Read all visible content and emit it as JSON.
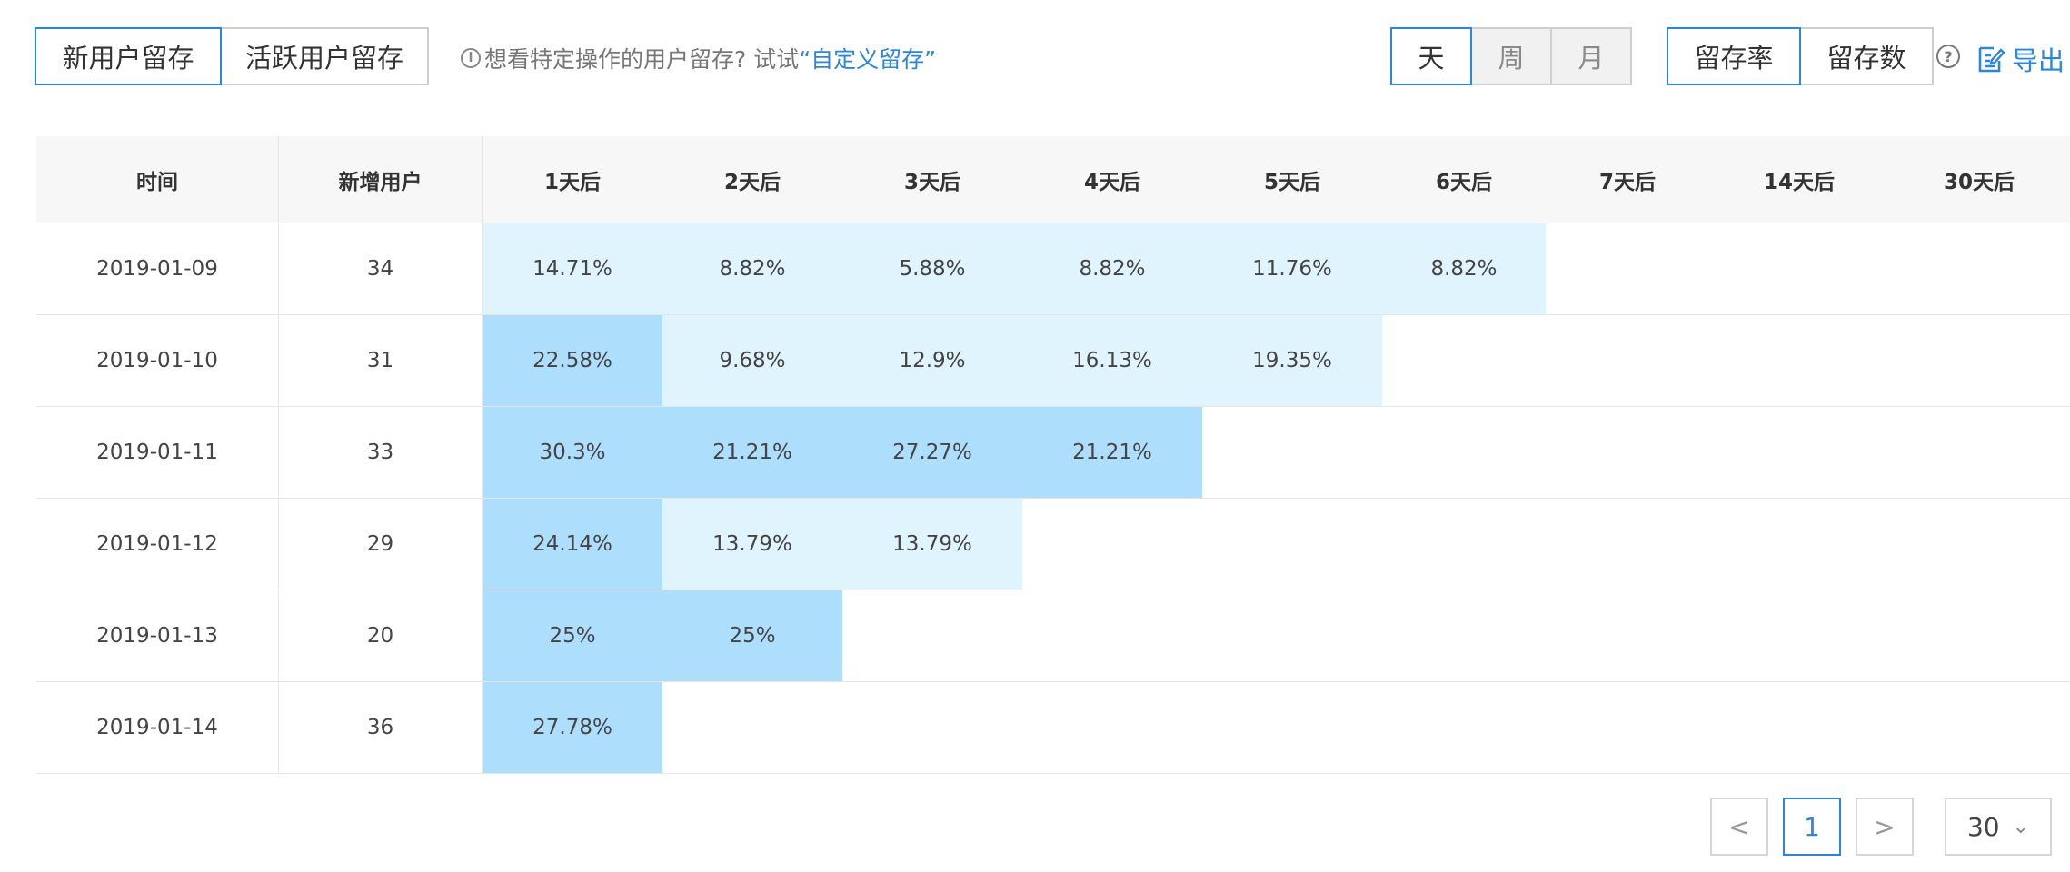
{
  "user_type_tabs": {
    "new_users": "新用户留存",
    "active_users": "活跃用户留存"
  },
  "hint": {
    "text": "想看特定操作的用户留存? 试试",
    "link": "“自定义留存”",
    "icon": "info-icon"
  },
  "period_tabs": {
    "day": "天",
    "week": "周",
    "month": "月"
  },
  "metric_tabs": {
    "rate": "留存率",
    "count": "留存数"
  },
  "help_icon": "?",
  "export_label": "导出",
  "table": {
    "headers": [
      "时间",
      "新增用户",
      "1天后",
      "2天后",
      "3天后",
      "4天后",
      "5天后",
      "6天后",
      "7天后",
      "14天后",
      "30天后"
    ],
    "rows": [
      {
        "date": "2019-01-09",
        "new_users": "34",
        "values": [
          "14.71%",
          "8.82%",
          "5.88%",
          "8.82%",
          "11.76%",
          "8.82%",
          "",
          "",
          ""
        ],
        "levels": [
          "low",
          "low",
          "low",
          "low",
          "low",
          "low",
          "",
          "",
          ""
        ]
      },
      {
        "date": "2019-01-10",
        "new_users": "31",
        "values": [
          "22.58%",
          "9.68%",
          "12.9%",
          "16.13%",
          "19.35%",
          "",
          "",
          "",
          ""
        ],
        "levels": [
          "high",
          "low",
          "low",
          "low",
          "low",
          "",
          "",
          "",
          ""
        ]
      },
      {
        "date": "2019-01-11",
        "new_users": "33",
        "values": [
          "30.3%",
          "21.21%",
          "27.27%",
          "21.21%",
          "",
          "",
          "",
          "",
          ""
        ],
        "levels": [
          "high",
          "high",
          "high",
          "high",
          "",
          "",
          "",
          "",
          ""
        ]
      },
      {
        "date": "2019-01-12",
        "new_users": "29",
        "values": [
          "24.14%",
          "13.79%",
          "13.79%",
          "",
          "",
          "",
          "",
          "",
          ""
        ],
        "levels": [
          "high",
          "low",
          "low",
          "",
          "",
          "",
          "",
          "",
          ""
        ]
      },
      {
        "date": "2019-01-13",
        "new_users": "20",
        "values": [
          "25%",
          "25%",
          "",
          "",
          "",
          "",
          "",
          "",
          ""
        ],
        "levels": [
          "high",
          "high",
          "",
          "",
          "",
          "",
          "",
          "",
          ""
        ]
      },
      {
        "date": "2019-01-14",
        "new_users": "36",
        "values": [
          "27.78%",
          "",
          "",
          "",
          "",
          "",
          "",
          "",
          ""
        ],
        "levels": [
          "high",
          "",
          "",
          "",
          "",
          "",
          "",
          "",
          ""
        ]
      }
    ]
  },
  "pagination": {
    "prev": "<",
    "current_page": "1",
    "next": ">",
    "page_size": "30"
  },
  "colors": {
    "accent": "#2b86e0",
    "low_retention": "#e0f4fd",
    "high_retention": "#addffd"
  }
}
